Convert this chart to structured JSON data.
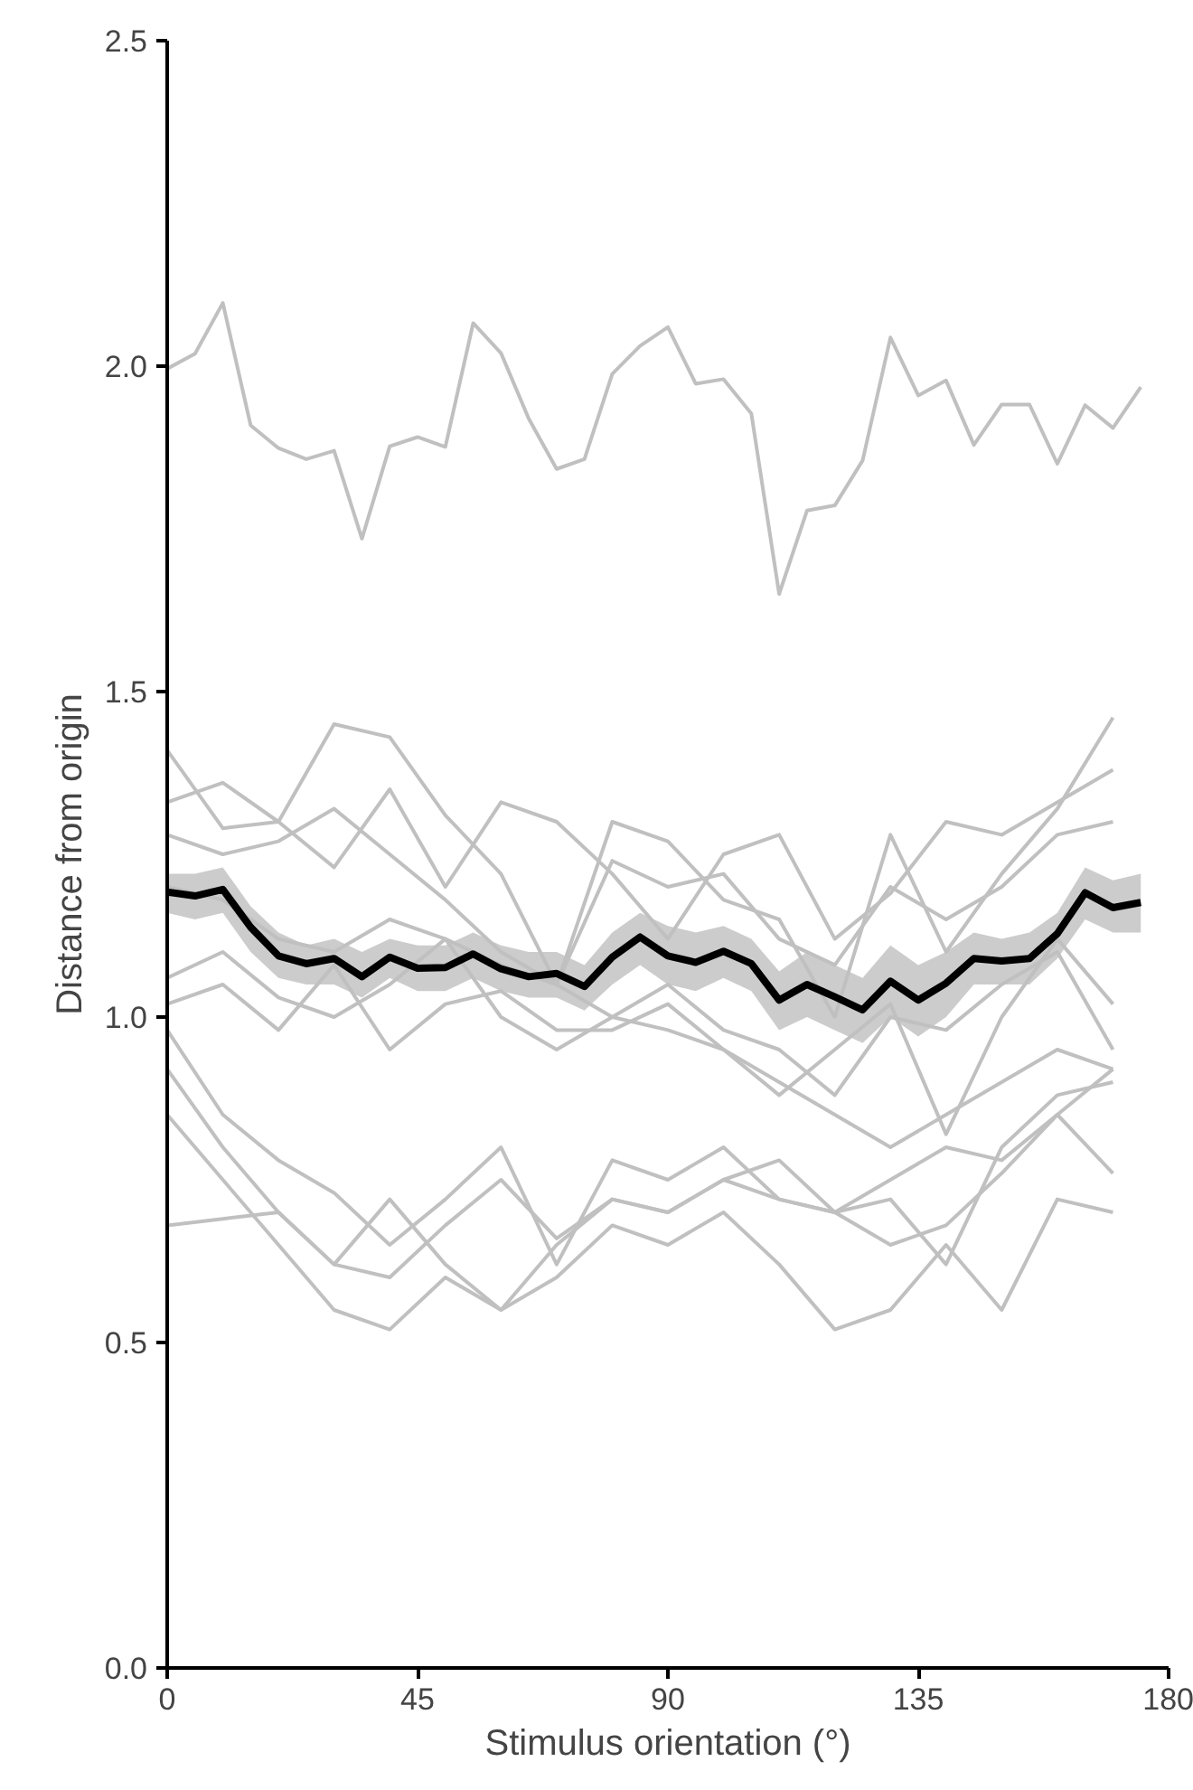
{
  "chart_data": {
    "type": "line",
    "xlabel": "Stimulus orientation (°)",
    "ylabel": "Distance from origin",
    "xlim": [
      0,
      180
    ],
    "ylim": [
      0,
      2.5
    ],
    "xticks": [
      0,
      45,
      90,
      135,
      180
    ],
    "yticks": [
      {
        "value": 0,
        "label": "0.0"
      },
      {
        "value": 0.5,
        "label": "0.5"
      },
      {
        "value": 1,
        "label": "1.0"
      },
      {
        "value": 1.5,
        "label": "1.5"
      },
      {
        "value": 2,
        "label": "2.0"
      },
      {
        "value": 2.5,
        "label": "2.5"
      }
    ],
    "grid": false,
    "marker": "none",
    "line_style": "solid",
    "x": [
      0,
      5,
      10,
      15,
      20,
      25,
      30,
      35,
      40,
      45,
      50,
      55,
      60,
      65,
      70,
      75,
      80,
      85,
      90,
      95,
      100,
      105,
      110,
      115,
      120,
      125,
      130,
      135,
      140,
      145,
      150,
      155,
      160,
      165,
      170,
      175
    ],
    "series": [
      {
        "color": "#c0c0c0",
        "values": [
          1.996,
          2.019,
          2.097,
          1.909,
          1.874,
          1.857,
          1.87,
          1.735,
          1.877,
          1.891,
          1.876,
          2.066,
          2.02,
          1.919,
          1.842,
          1.857,
          1.988,
          2.031,
          2.06,
          1.973,
          1.98,
          1.927,
          1.65,
          1.778,
          1.786,
          1.855,
          2.044,
          1.955,
          1.978,
          1.879,
          1.941,
          1.941,
          1.85,
          1.94,
          1.905,
          1.968
        ]
      },
      {
        "color": "#c0c0c0",
        "x": [
          0,
          10,
          20,
          30,
          40,
          50,
          60,
          70,
          80,
          90,
          100,
          110,
          120,
          130,
          140,
          150,
          160,
          170
        ],
        "values": [
          1.41,
          1.29,
          1.3,
          1.45,
          1.43,
          1.31,
          1.22,
          1.05,
          1.0,
          0.98,
          0.95,
          0.9,
          0.85,
          0.8,
          0.85,
          0.9,
          0.95,
          0.92
        ]
      },
      {
        "color": "#c0c0c0",
        "x": [
          0,
          10,
          20,
          30,
          40,
          50,
          60,
          70,
          80,
          90,
          100,
          110,
          120,
          130,
          140,
          150,
          160,
          170
        ],
        "values": [
          1.33,
          1.36,
          1.3,
          1.23,
          1.35,
          1.2,
          1.33,
          1.3,
          1.22,
          1.12,
          1.25,
          1.28,
          1.12,
          1.19,
          1.3,
          1.28,
          1.33,
          1.38
        ]
      },
      {
        "color": "#c0c0c0",
        "x": [
          0,
          10,
          20,
          30,
          40,
          50,
          60,
          70,
          80,
          90,
          100,
          110,
          120,
          130,
          140,
          150,
          160,
          170
        ],
        "values": [
          1.28,
          1.25,
          1.27,
          1.32,
          1.25,
          1.18,
          1.1,
          1.05,
          1.3,
          1.27,
          1.18,
          1.15,
          1.0,
          1.28,
          1.1,
          1.22,
          1.32,
          1.46
        ]
      },
      {
        "color": "#c0c0c0",
        "x": [
          0,
          10,
          20,
          30,
          40,
          50,
          60,
          70,
          80,
          90,
          100,
          110,
          120,
          130,
          140,
          150,
          160,
          170
        ],
        "values": [
          1.2,
          1.18,
          1.12,
          1.1,
          1.15,
          1.12,
          1.08,
          1.05,
          1.24,
          1.2,
          1.22,
          1.12,
          1.08,
          1.2,
          1.15,
          1.2,
          1.28,
          1.3
        ]
      },
      {
        "color": "#c0c0c0",
        "x": [
          0,
          10,
          20,
          30,
          40,
          50,
          60,
          70,
          80,
          90,
          100,
          110,
          120,
          130,
          140,
          150,
          160,
          170
        ],
        "values": [
          1.06,
          1.1,
          1.03,
          1.0,
          1.05,
          1.12,
          1.0,
          0.95,
          1.0,
          1.05,
          0.98,
          0.95,
          0.88,
          1.0,
          0.98,
          1.05,
          1.1,
          0.95
        ]
      },
      {
        "color": "#c0c0c0",
        "x": [
          0,
          10,
          20,
          30,
          40,
          50,
          60,
          70,
          80,
          90,
          100,
          110,
          120,
          130,
          140,
          150,
          160,
          170
        ],
        "values": [
          1.02,
          1.05,
          0.98,
          1.08,
          0.95,
          1.02,
          1.04,
          0.98,
          0.98,
          1.02,
          0.95,
          0.88,
          0.95,
          1.02,
          0.82,
          1.0,
          1.12,
          1.02
        ]
      },
      {
        "color": "#c0c0c0",
        "x": [
          0,
          10,
          20,
          30,
          40,
          50,
          60,
          70,
          80,
          90,
          100,
          110,
          120,
          130,
          140,
          150,
          160,
          170
        ],
        "values": [
          0.98,
          0.85,
          0.78,
          0.73,
          0.65,
          0.72,
          0.8,
          0.62,
          0.78,
          0.75,
          0.8,
          0.72,
          0.7,
          0.72,
          0.62,
          0.8,
          0.88,
          0.9
        ]
      },
      {
        "color": "#c0c0c0",
        "x": [
          0,
          10,
          20,
          30,
          40,
          50,
          60,
          70,
          80,
          90,
          100,
          110,
          120,
          130,
          140,
          150,
          160,
          170
        ],
        "values": [
          0.92,
          0.8,
          0.7,
          0.62,
          0.6,
          0.68,
          0.75,
          0.66,
          0.72,
          0.7,
          0.75,
          0.78,
          0.7,
          0.65,
          0.68,
          0.76,
          0.85,
          0.92
        ]
      },
      {
        "color": "#c0c0c0",
        "x": [
          0,
          10,
          20,
          30,
          40,
          50,
          60,
          70,
          80,
          90,
          100,
          110,
          120,
          130,
          140,
          150,
          160,
          170
        ],
        "values": [
          0.68,
          0.69,
          0.7,
          0.62,
          0.72,
          0.62,
          0.55,
          0.65,
          0.72,
          0.7,
          0.75,
          0.72,
          0.7,
          0.75,
          0.8,
          0.78,
          0.85,
          0.76
        ]
      },
      {
        "color": "#c0c0c0",
        "x": [
          0,
          10,
          20,
          30,
          40,
          50,
          60,
          70,
          80,
          90,
          100,
          110,
          120,
          130,
          140,
          150,
          160,
          170
        ],
        "values": [
          0.85,
          0.75,
          0.65,
          0.55,
          0.52,
          0.6,
          0.55,
          0.6,
          0.68,
          0.65,
          0.7,
          0.62,
          0.52,
          0.55,
          0.65,
          0.55,
          0.72,
          0.7
        ]
      },
      {
        "color": "#000000",
        "values": [
          1.192,
          1.186,
          1.196,
          1.138,
          1.094,
          1.082,
          1.09,
          1.062,
          1.092,
          1.075,
          1.076,
          1.097,
          1.074,
          1.062,
          1.067,
          1.047,
          1.092,
          1.123,
          1.094,
          1.084,
          1.101,
          1.082,
          1.026,
          1.05,
          1.031,
          1.011,
          1.055,
          1.026,
          1.052,
          1.09,
          1.086,
          1.09,
          1.128,
          1.191,
          1.168,
          1.176
        ],
        "lower": [
          1.16,
          1.15,
          1.16,
          1.1,
          1.06,
          1.05,
          1.05,
          1.03,
          1.06,
          1.04,
          1.04,
          1.06,
          1.04,
          1.03,
          1.03,
          1.01,
          1.05,
          1.08,
          1.05,
          1.04,
          1.06,
          1.04,
          0.98,
          1.0,
          0.98,
          0.96,
          1.0,
          0.97,
          1.0,
          1.05,
          1.05,
          1.05,
          1.09,
          1.15,
          1.13,
          1.13
        ],
        "upper": [
          1.22,
          1.22,
          1.23,
          1.17,
          1.13,
          1.11,
          1.12,
          1.1,
          1.12,
          1.11,
          1.11,
          1.13,
          1.11,
          1.1,
          1.1,
          1.08,
          1.13,
          1.16,
          1.14,
          1.13,
          1.14,
          1.12,
          1.07,
          1.1,
          1.08,
          1.06,
          1.11,
          1.08,
          1.1,
          1.13,
          1.12,
          1.13,
          1.16,
          1.23,
          1.21,
          1.22
        ]
      }
    ]
  }
}
